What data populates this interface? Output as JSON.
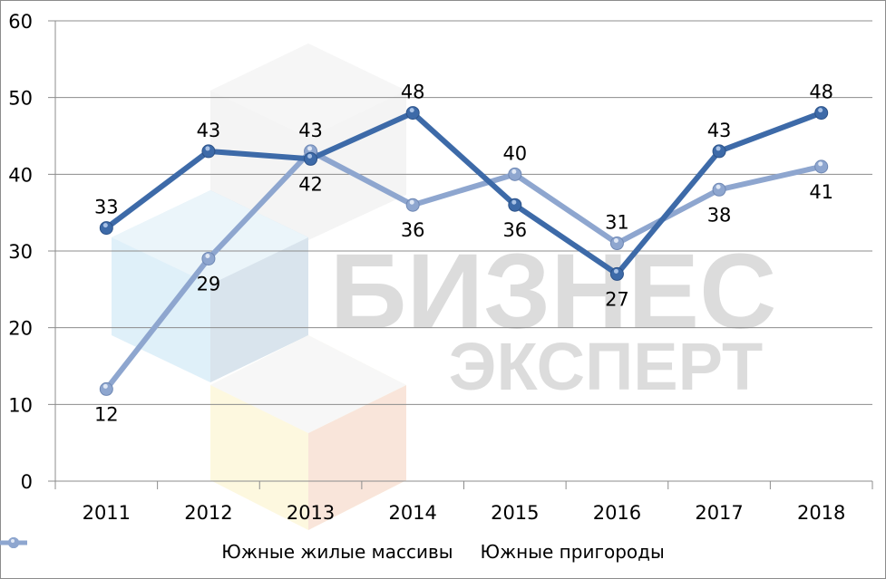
{
  "chart_data": {
    "type": "line",
    "title": "",
    "xlabel": "",
    "ylabel": "",
    "categories": [
      "2011",
      "2012",
      "2013",
      "2014",
      "2015",
      "2016",
      "2017",
      "2018"
    ],
    "series": [
      {
        "name": "Южные жилые массивы",
        "values": [
          33,
          43,
          42,
          48,
          36,
          27,
          43,
          48
        ],
        "color": "#3d6aa8"
      },
      {
        "name": "Южные пригороды",
        "values": [
          12,
          29,
          43,
          36,
          40,
          31,
          38,
          41
        ],
        "color": "#8ea6cf"
      }
    ],
    "ylim": [
      0,
      60
    ],
    "yticks": [
      "0",
      "10",
      "20",
      "30",
      "40",
      "50",
      "60"
    ],
    "grid": true,
    "legend_position": "bottom",
    "data_labels": true
  },
  "watermark": {
    "line1": "БИЗНЕС",
    "line2": "ЭКСПЕРТ"
  },
  "legend": {
    "items": [
      {
        "label": "Южные жилые массивы",
        "color": "#3d6aa8"
      },
      {
        "label": "Южные пригороды",
        "color": "#8ea6cf"
      }
    ]
  }
}
